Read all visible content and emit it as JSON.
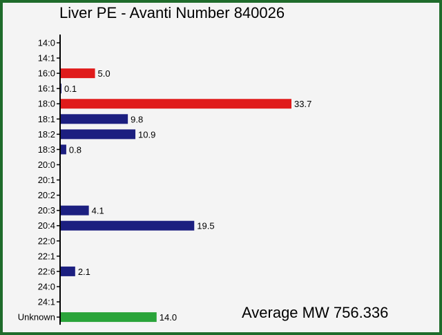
{
  "chart_data": {
    "type": "bar",
    "orientation": "horizontal",
    "title": "Liver PE - Avanti Number 840026",
    "annotation": "Average MW 756.336",
    "categories": [
      "14:0",
      "14:1",
      "16:0",
      "16:1",
      "18:0",
      "18:1",
      "18:2",
      "18:3",
      "20:0",
      "20:1",
      "20:2",
      "20:3",
      "20:4",
      "22:0",
      "22:1",
      "22:6",
      "24:0",
      "24:1",
      "Unknown"
    ],
    "values": [
      null,
      null,
      5.0,
      0.1,
      33.7,
      9.8,
      10.9,
      0.8,
      null,
      null,
      null,
      4.1,
      19.5,
      null,
      null,
      2.1,
      null,
      null,
      14.0
    ],
    "value_labels": [
      "",
      "",
      "5.0",
      "0.1",
      "33.7",
      "9.8",
      "10.9",
      "0.8",
      "",
      "",
      "",
      "4.1",
      "19.5",
      "",
      "",
      "2.1",
      "",
      "",
      "14.0"
    ],
    "bar_colors": [
      "#1c1f80",
      "#1c1f80",
      "#e01b1b",
      "#1c1f80",
      "#e01b1b",
      "#1c1f80",
      "#1c1f80",
      "#1c1f80",
      "#1c1f80",
      "#1c1f80",
      "#1c1f80",
      "#1c1f80",
      "#1c1f80",
      "#1c1f80",
      "#1c1f80",
      "#1c1f80",
      "#1c1f80",
      "#1c1f80",
      "#2aa43a"
    ],
    "xlim": [
      0,
      40
    ],
    "grid": false,
    "legend": "none"
  }
}
